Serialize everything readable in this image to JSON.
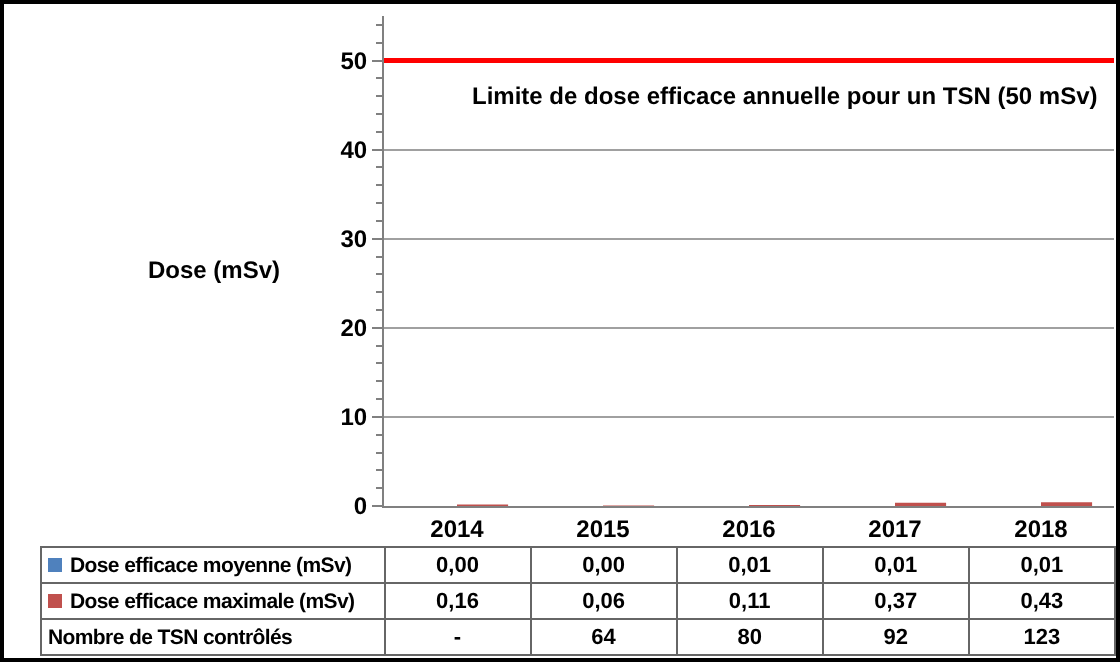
{
  "chart_data": {
    "type": "bar",
    "ylabel": "Dose (mSv)",
    "categories": [
      "2014",
      "2015",
      "2016",
      "2017",
      "2018"
    ],
    "series": [
      {
        "name": "Dose efficace moyenne (mSv)",
        "color": "#4f81bd",
        "values": [
          0.0,
          0.0,
          0.01,
          0.01,
          0.01
        ],
        "value_labels": [
          "0,00",
          "0,00",
          "0,01",
          "0,01",
          "0,01"
        ]
      },
      {
        "name": "Dose efficace maximale (mSv)",
        "color": "#c0504d",
        "values": [
          0.16,
          0.06,
          0.11,
          0.37,
          0.43
        ],
        "value_labels": [
          "0,16",
          "0,06",
          "0,11",
          "0,37",
          "0,43"
        ]
      }
    ],
    "ylim": [
      0,
      55
    ],
    "yticks": [
      0,
      10,
      20,
      30,
      40,
      50
    ],
    "grid": "y",
    "legend": "bottom",
    "ref_lines": [
      {
        "axis": "y",
        "value": 50,
        "label": "Limite de dose efficace annuelle pour un TSN (50 mSv)",
        "color": "#ff0000"
      }
    ],
    "annotations": [
      "Nombre de TSN contrôlés",
      "-",
      "64",
      "80",
      "92",
      "123"
    ]
  }
}
